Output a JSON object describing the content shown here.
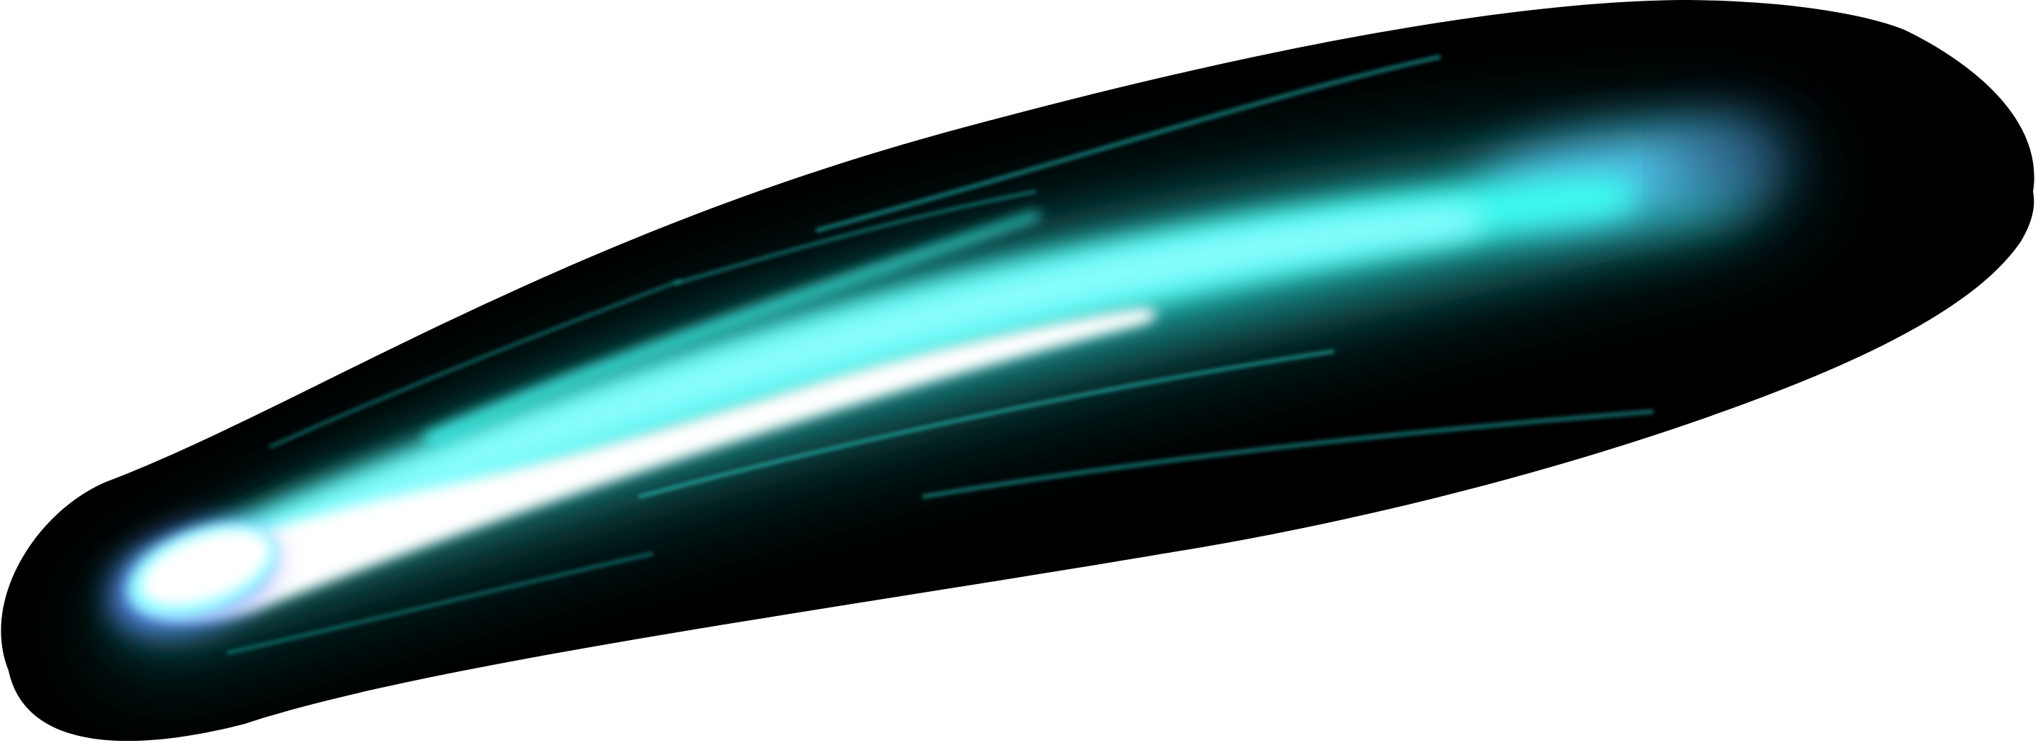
{
  "image": {
    "subject": "comet-glow-streak",
    "colors": {
      "background": "#ffffff",
      "envelope": "#000000",
      "deep_teal": "#0f4a48",
      "teal": "#1fa3a0",
      "cyan": "#3dfff2",
      "light_cyan": "#8ffcff",
      "sky_blue": "#5fd0ff",
      "violet_edge": "#6a7dff",
      "core": "#ffffff"
    }
  }
}
